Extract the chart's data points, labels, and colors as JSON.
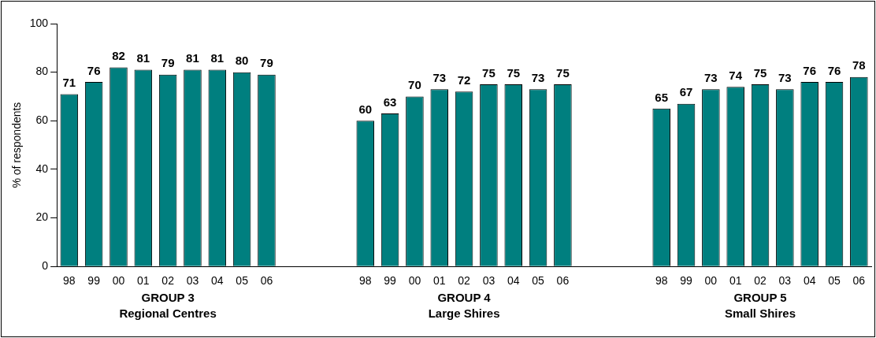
{
  "chart_data": {
    "type": "bar",
    "ylabel": "% of respondents",
    "categories": [
      "98",
      "99",
      "00",
      "01",
      "02",
      "03",
      "04",
      "05",
      "06",
      null,
      null,
      null,
      "98",
      "99",
      "00",
      "01",
      "02",
      "03",
      "04",
      "05",
      "06",
      null,
      null,
      null,
      "98",
      "99",
      "00",
      "01",
      "02",
      "03",
      "04",
      "05",
      "06"
    ],
    "values": [
      71,
      76,
      82,
      81,
      79,
      81,
      81,
      80,
      79,
      null,
      null,
      null,
      60,
      63,
      70,
      73,
      72,
      75,
      75,
      73,
      75,
      null,
      null,
      null,
      65,
      67,
      73,
      74,
      75,
      73,
      76,
      76,
      78
    ],
    "color": "#007f7f",
    "ylim": [
      0,
      100
    ],
    "yticks": [
      0,
      20,
      40,
      60,
      80,
      100
    ],
    "grid": false,
    "legend": false,
    "data_labels": true,
    "annotations": [
      "GROUP 3\nRegional Centres",
      "GROUP 4\nLarge Shires",
      "GROUP 5\nSmall Shires"
    ]
  }
}
